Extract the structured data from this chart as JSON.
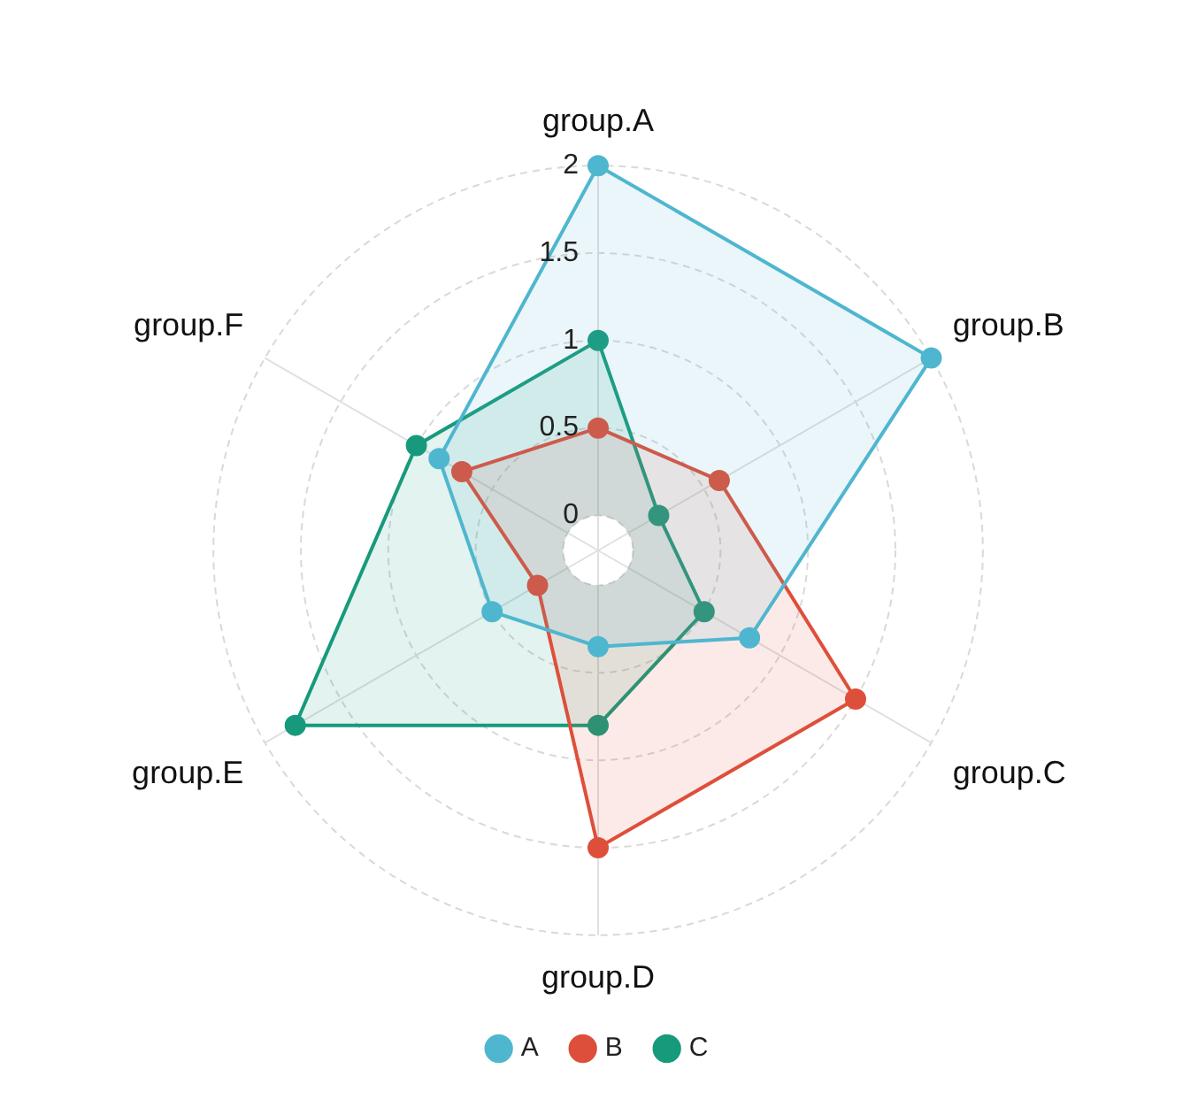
{
  "chart_data": {
    "type": "radar",
    "categories": [
      "group.A",
      "group.B",
      "group.C",
      "group.D",
      "group.E",
      "group.F"
    ],
    "series": [
      {
        "name": "A",
        "color": "#4fb6cf",
        "values": [
          2,
          2,
          0.8,
          0.35,
          0.5,
          0.85
        ]
      },
      {
        "name": "B",
        "color": "#de4f3b",
        "values": [
          0.5,
          0.6,
          1.5,
          1.5,
          0.2,
          0.7
        ]
      },
      {
        "name": "C",
        "color": "#179a7b",
        "values": [
          1,
          0.2,
          0.5,
          0.8,
          1.8,
          1
        ]
      }
    ],
    "ylim": [
      -0.2,
      2
    ],
    "yticks": [
      0,
      0.5,
      1,
      1.5,
      2
    ],
    "grid": true,
    "legend": "bottom",
    "marker": "circle"
  }
}
